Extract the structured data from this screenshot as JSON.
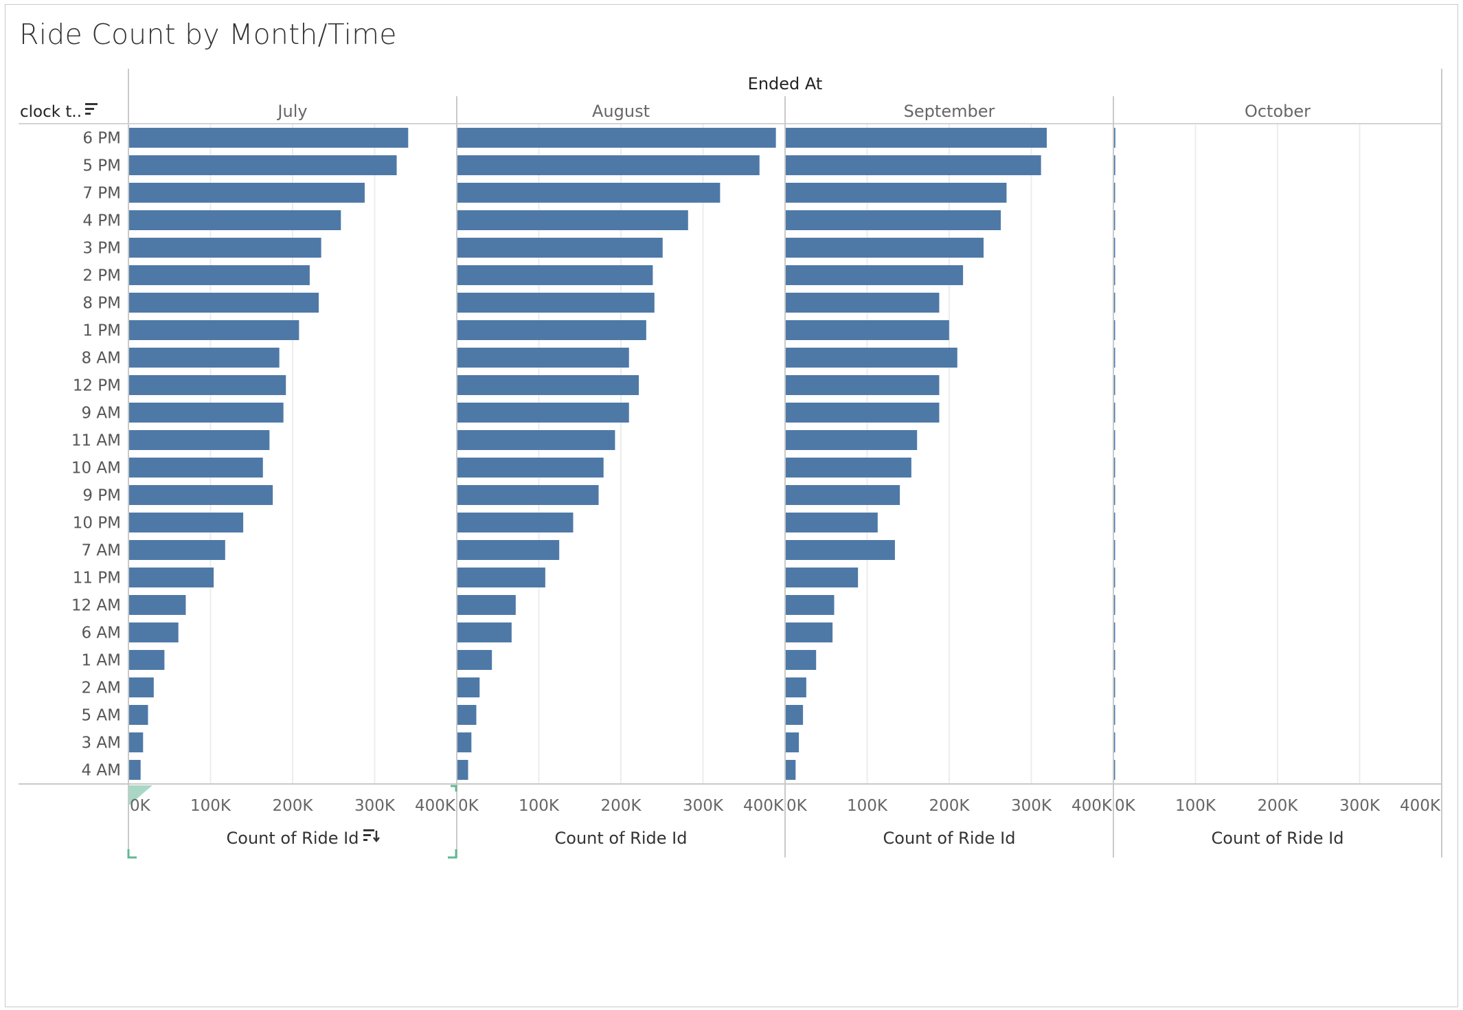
{
  "sheet": {
    "title": "Ride Count by Month/Time",
    "column_header": "Ended At",
    "row_header": "clock t.."
  },
  "colors": {
    "bar": "#4e79a7",
    "grid": "#ececec",
    "border": "#c9c9c9",
    "selection": "#61b893"
  },
  "chart_data": {
    "type": "bar",
    "orientation": "horizontal",
    "xlabel": "Count of Ride Id",
    "xlim": [
      0,
      400000
    ],
    "x_ticks": [
      "0K",
      "100K",
      "200K",
      "300K",
      "400K"
    ],
    "legend": "none",
    "grid": true,
    "categories": [
      "6 PM",
      "5 PM",
      "7 PM",
      "4 PM",
      "3 PM",
      "2 PM",
      "8 PM",
      "1 PM",
      "8 AM",
      "12 PM",
      "9 AM",
      "11 AM",
      "10 AM",
      "9 PM",
      "10 PM",
      "7 AM",
      "11 PM",
      "12 AM",
      "6 AM",
      "1 AM",
      "2 AM",
      "5 AM",
      "3 AM",
      "4 AM"
    ],
    "series": [
      {
        "name": "July",
        "values": [
          340000,
          326000,
          287000,
          258000,
          234000,
          220000,
          231000,
          207000,
          183000,
          191000,
          188000,
          171000,
          163000,
          175000,
          139000,
          117000,
          103000,
          69000,
          60000,
          43000,
          30000,
          23000,
          17000,
          14000
        ]
      },
      {
        "name": "August",
        "values": [
          388000,
          368000,
          320000,
          281000,
          250000,
          238000,
          240000,
          230000,
          209000,
          221000,
          209000,
          192000,
          178000,
          172000,
          141000,
          124000,
          107000,
          71000,
          66000,
          42000,
          27000,
          23000,
          17000,
          13000
        ]
      },
      {
        "name": "September",
        "values": [
          318000,
          311000,
          269000,
          262000,
          241000,
          216000,
          187000,
          199000,
          209000,
          187000,
          187000,
          160000,
          153000,
          139000,
          112000,
          133000,
          88000,
          59000,
          57000,
          37000,
          25000,
          21000,
          16000,
          12000
        ]
      },
      {
        "name": "October",
        "values": [
          1500,
          1400,
          1200,
          1100,
          1000,
          900,
          900,
          850,
          750,
          800,
          750,
          700,
          650,
          700,
          550,
          500,
          450,
          300,
          250,
          200,
          150,
          100,
          80,
          60
        ]
      }
    ]
  }
}
